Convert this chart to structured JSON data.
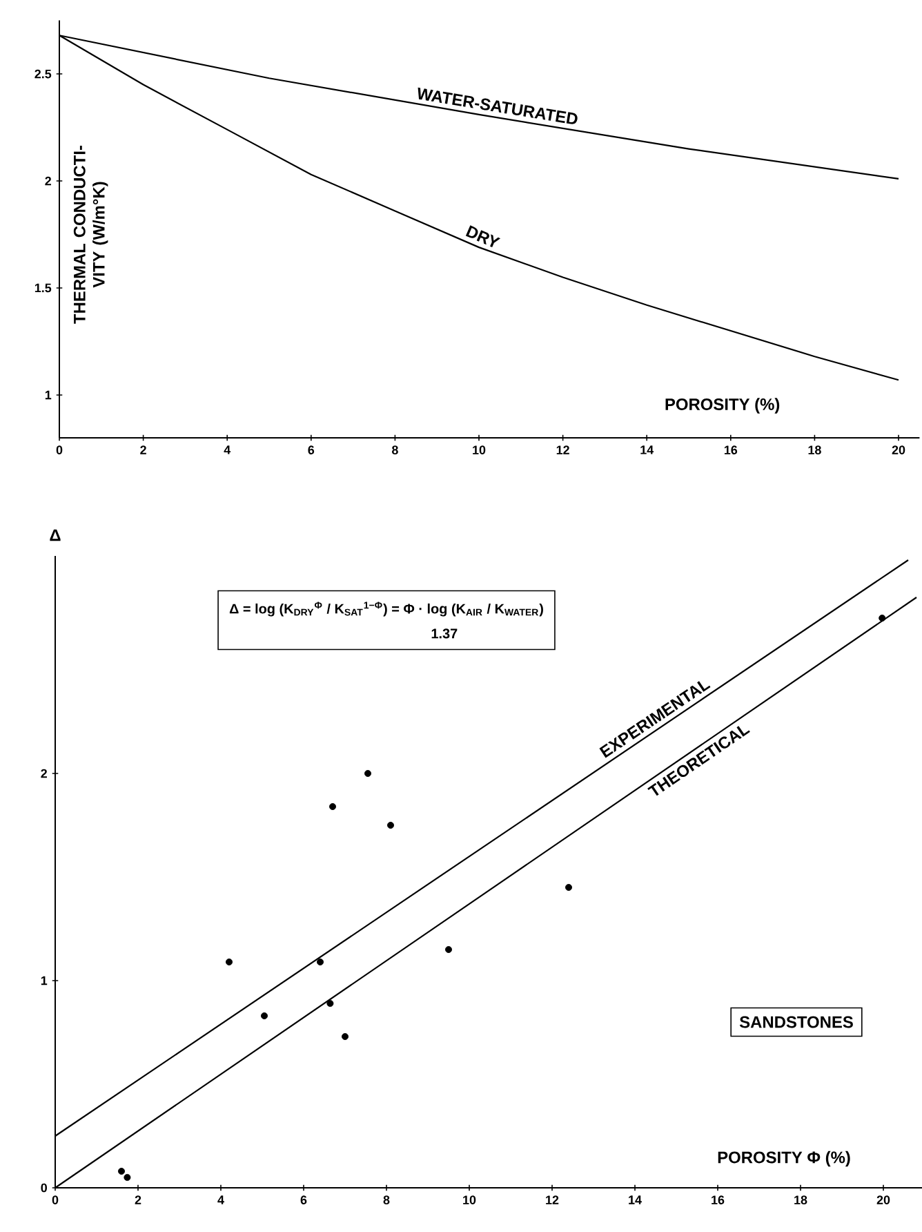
{
  "chart_data": [
    {
      "type": "line",
      "xlabel": "POROSITY (%)",
      "ylabel": "THERMAL CONDUCTI- VITY (W/m°K)",
      "xlim": [
        0,
        20.5
      ],
      "ylim": [
        0.8,
        2.75
      ],
      "xticks": [
        0,
        2,
        4,
        6,
        8,
        10,
        12,
        14,
        16,
        18,
        20
      ],
      "yticks": [
        1,
        1.5,
        2,
        2.5
      ],
      "series": [
        {
          "name": "WATER-SATURATED",
          "color": "#000000",
          "x": [
            0,
            5,
            10,
            15,
            20
          ],
          "values": [
            2.68,
            2.48,
            2.31,
            2.15,
            2.01
          ]
        },
        {
          "name": "DRY",
          "color": "#000000",
          "x": [
            0,
            2,
            4,
            6,
            8,
            10,
            12,
            14,
            16,
            18,
            20
          ],
          "values": [
            2.68,
            2.45,
            2.24,
            2.03,
            1.86,
            1.69,
            1.55,
            1.42,
            1.3,
            1.18,
            1.07
          ]
        }
      ]
    },
    {
      "type": "scatter",
      "xlabel": "POROSITY Φ (%)",
      "ylabel": "Δ",
      "xlim": [
        0,
        21
      ],
      "ylim": [
        0,
        3.05
      ],
      "xticks": [
        0,
        2,
        4,
        6,
        8,
        10,
        12,
        14,
        16,
        18,
        20
      ],
      "yticks": [
        0,
        1,
        2
      ],
      "annotations": [
        "Δ = log (K$_{DRY}$$^{Φ}$ / K$_{SAT}$$^{1−Φ}$) = Φ · log (K$_{AIR}$ / K$_{WATER}$)",
        "1.37",
        "SANDSTONES"
      ],
      "series": [
        {
          "name": "EXPERIMENTAL",
          "type": "line",
          "color": "#000000",
          "x": [
            0,
            20.6
          ],
          "values": [
            0.25,
            3.03
          ]
        },
        {
          "name": "THEORETICAL",
          "type": "line",
          "color": "#000000",
          "x": [
            0,
            20.8
          ],
          "values": [
            0,
            2.85
          ]
        },
        {
          "type": "scatter",
          "marker": "circle",
          "color": "#000000",
          "x": [
            1.6,
            1.74,
            4.2,
            5.05,
            6.4,
            6.64,
            7.0,
            9.5,
            12.4,
            7.55,
            6.7,
            8.1,
            19.97
          ],
          "values": [
            0.08,
            0.05,
            1.09,
            0.83,
            1.09,
            0.89,
            0.73,
            1.15,
            1.45,
            2.0,
            1.84,
            1.75,
            2.75
          ]
        }
      ]
    }
  ]
}
